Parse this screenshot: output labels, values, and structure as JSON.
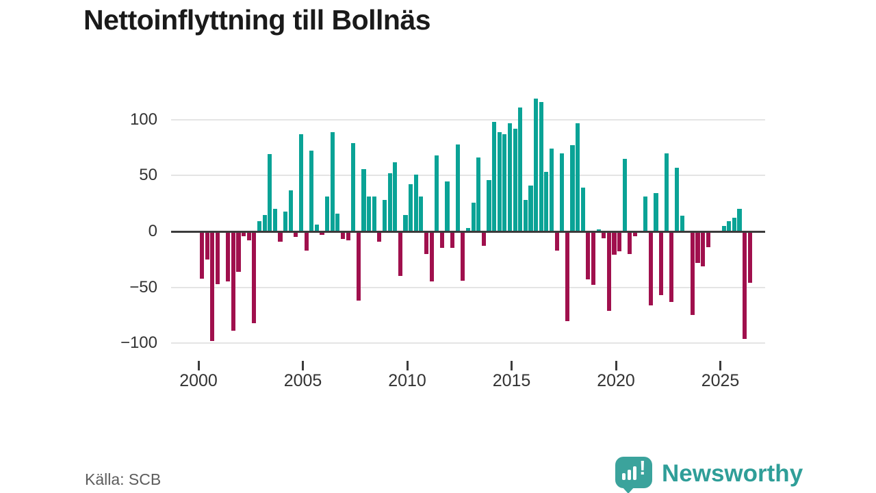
{
  "title": "Nettoinflyttning till Bollnäs",
  "source": "Källa: SCB",
  "branding": {
    "logo": "newsworthy-speech-bubble-chart-icon",
    "name": "Newsworthy"
  },
  "colors": {
    "positive": "#0aa396",
    "negative": "#a0104d",
    "zero_line": "#3b3b3b",
    "gridline": "#e4e4e4",
    "brand_teal": "#2f9e98"
  },
  "chart_data": {
    "type": "bar",
    "title": "Nettoinflyttning till Bollnäs",
    "xlabel": "",
    "ylabel": "",
    "x_start": "2000 Q1",
    "x_end": "2026 Q2",
    "frequency": "quarterly",
    "ylim": [
      -110,
      125
    ],
    "grid": "horizontal",
    "y_tick_labels": [
      "100",
      "50",
      "0",
      "−50",
      "−100"
    ],
    "y_tick_values": [
      100,
      50,
      0,
      -50,
      -100
    ],
    "x_tick_labels": [
      "2000",
      "2005",
      "2010",
      "2015",
      "2020",
      "2025"
    ],
    "x_tick_years": [
      2000,
      2005,
      2010,
      2015,
      2020,
      2025
    ],
    "series": [
      {
        "name": "Nettoinflyttning",
        "values": [
          -42,
          -25,
          -98,
          -47,
          0,
          -45,
          -89,
          -36,
          -4,
          -8,
          -82,
          9,
          15,
          69,
          20,
          -9,
          18,
          37,
          -5,
          87,
          -17,
          72,
          6,
          -3,
          31,
          89,
          16,
          -7,
          -8,
          79,
          -62,
          56,
          31,
          31,
          -9,
          28,
          52,
          62,
          -40,
          15,
          42,
          51,
          31,
          -20,
          -45,
          68,
          -15,
          45,
          -15,
          78,
          -44,
          3,
          26,
          66,
          -13,
          46,
          98,
          89,
          87,
          97,
          92,
          111,
          28,
          41,
          119,
          116,
          53,
          74,
          -17,
          70,
          -80,
          77,
          97,
          39,
          -43,
          -48,
          2,
          -6,
          -71,
          -21,
          -18,
          65,
          -20,
          -4,
          0,
          31,
          -66,
          34,
          -57,
          70,
          -63,
          57,
          14,
          0,
          -75,
          -28,
          -31,
          -14,
          0,
          0,
          5,
          9,
          12,
          20,
          -96,
          -46
        ]
      }
    ]
  }
}
